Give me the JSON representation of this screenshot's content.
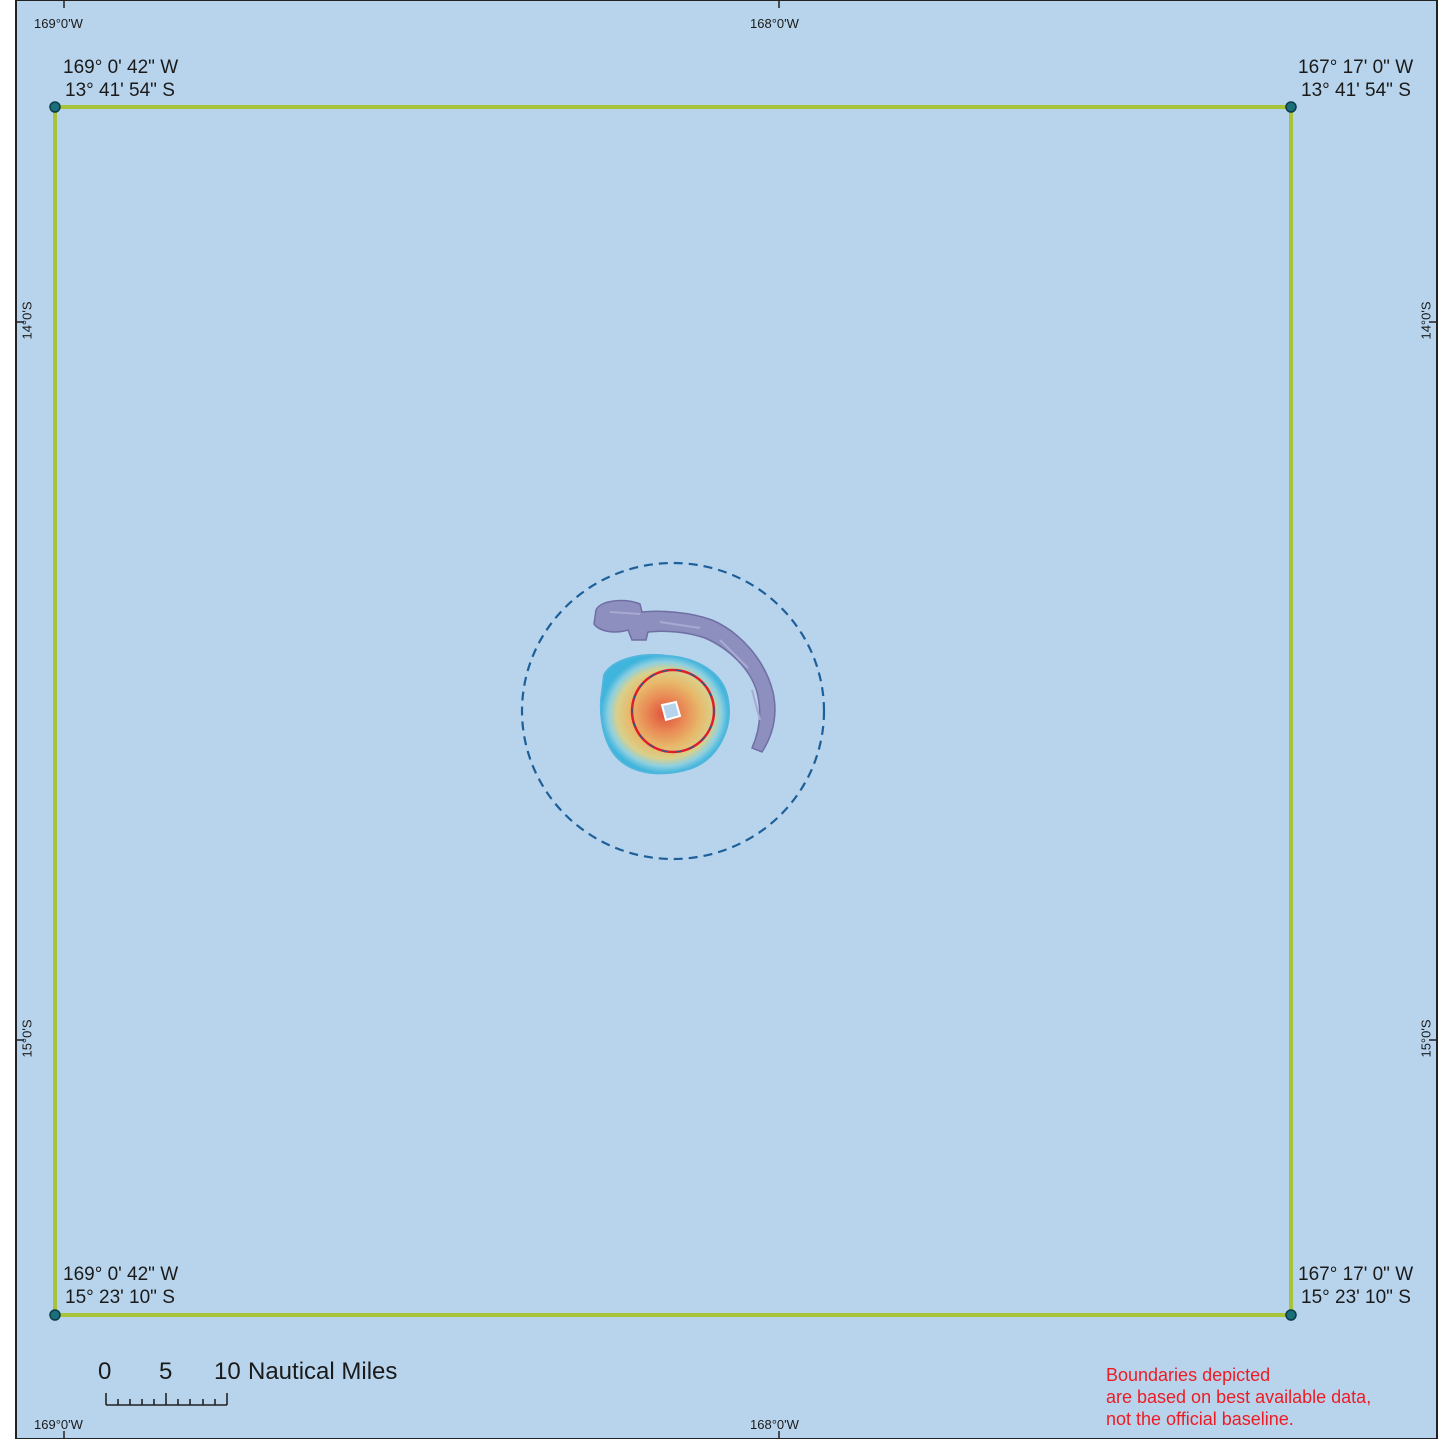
{
  "map": {
    "colors": {
      "ocean": "#b8d4ec",
      "boundary": "#a8c23a",
      "corner_point": "#1b6f7c",
      "dashed_circle": "#1d5f99",
      "red_circle": "#e11d2a",
      "disclaimer": "#ed1c24",
      "frame": "#222222"
    },
    "graticule": {
      "top": [
        "169°0'W",
        "168°0'W"
      ],
      "bottom": [
        "169°0'W",
        "168°0'W"
      ],
      "left": [
        "14°0'S",
        "15°0'S"
      ],
      "right": [
        "14°0'S",
        "15°0'S"
      ]
    },
    "corners": {
      "top_left": {
        "lon": "169° 0' 42\" W",
        "lat": "13° 41' 54\" S"
      },
      "top_right": {
        "lon": "167° 17' 0\" W",
        "lat": "13° 41' 54\" S"
      },
      "bottom_left": {
        "lon": "169° 0' 42\" W",
        "lat": "15° 23' 10\" S"
      },
      "bottom_right": {
        "lon": "167° 17' 0\" W",
        "lat": "15° 23' 10\" S"
      }
    },
    "scale_bar": {
      "ticks": [
        "0",
        "5",
        "10"
      ],
      "units": "Nautical Miles"
    },
    "disclaimer": [
      "Boundaries depicted",
      "are based on best available data,",
      "not the official baseline."
    ]
  }
}
